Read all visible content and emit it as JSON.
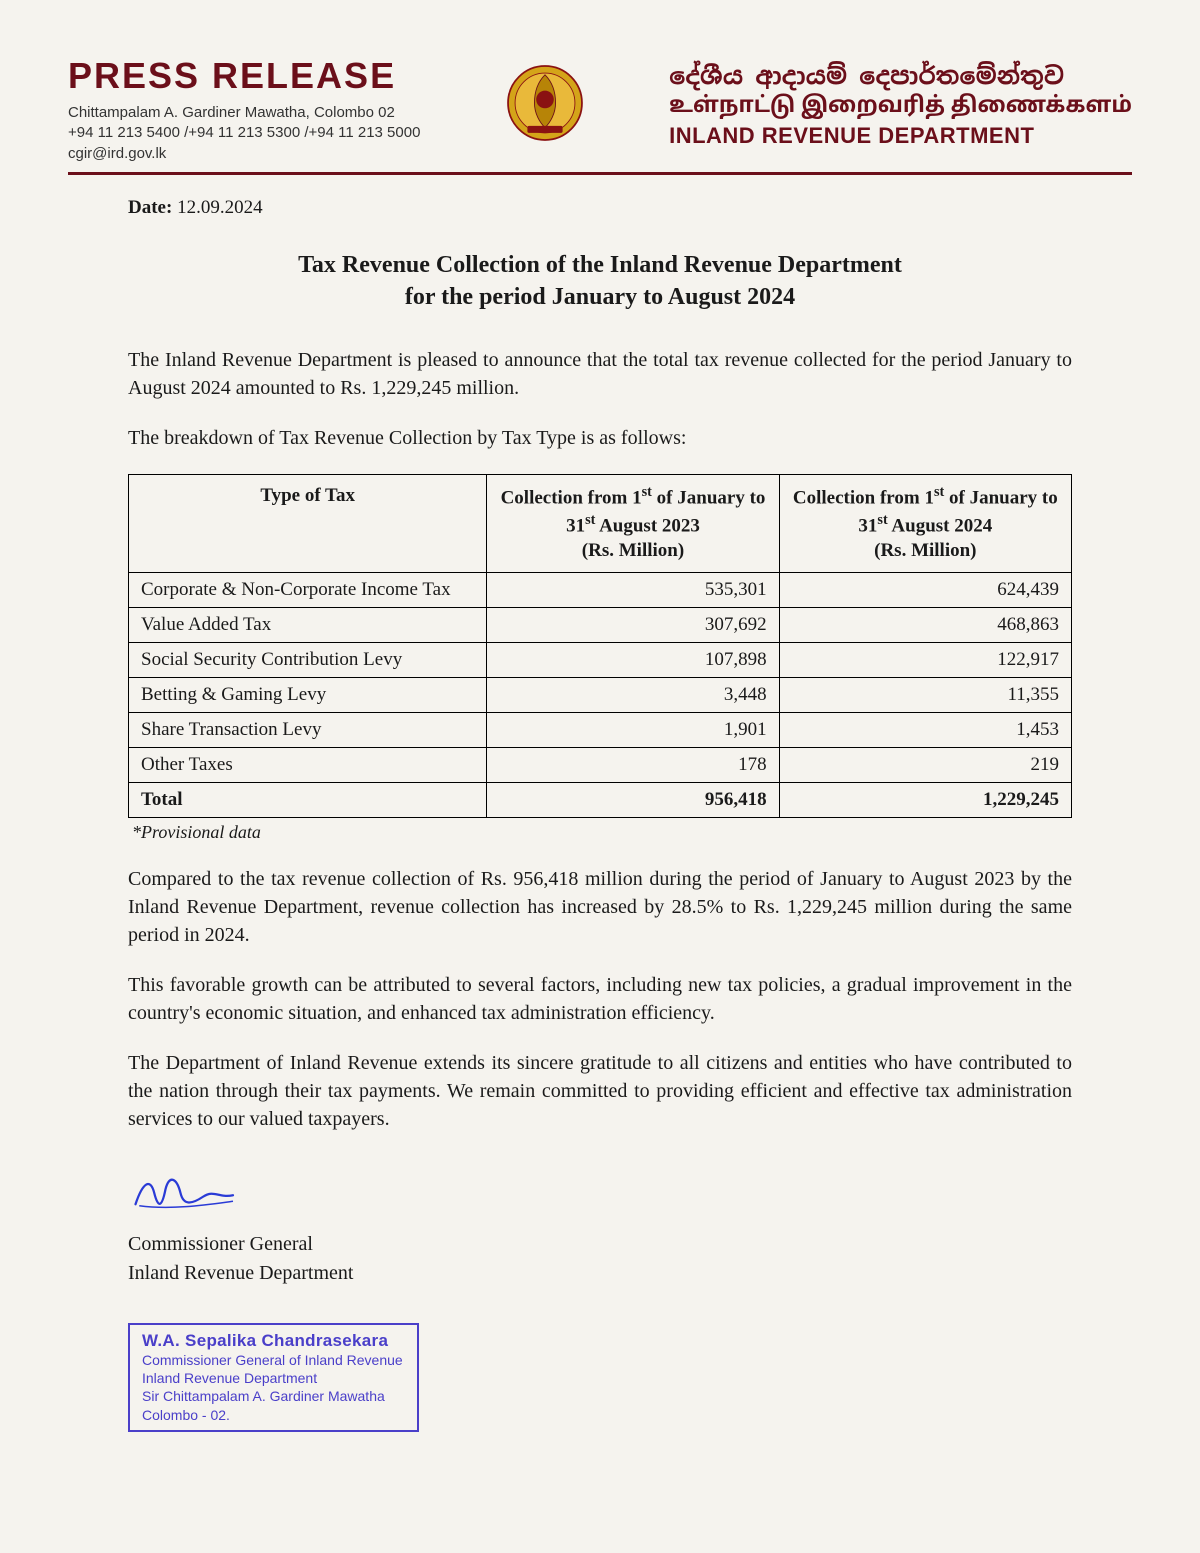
{
  "header": {
    "press_release": "PRESS RELEASE",
    "address_line1": "Chittampalam A. Gardiner Mawatha, Colombo 02",
    "address_line2": "+94 11 213 5400 /+94 11 213 5300 /+94 11 213 5000",
    "address_line3": "cgir@ird.gov.lk",
    "dept_sinhala": "දේශීය ආදායම් දෙපාර්තමේන්තුව",
    "dept_tamil": "உள்நாட்டு இறைவரித் திணைக்களம்",
    "dept_english": "INLAND REVENUE DEPARTMENT",
    "rule_color": "#6b0f1a"
  },
  "date": {
    "label": "Date:",
    "value": " 12.09.2024"
  },
  "title_line1": "Tax Revenue Collection of the Inland Revenue Department",
  "title_line2": "for the period January to August 2024",
  "para1": "The Inland Revenue Department is pleased to announce that the total tax revenue collected for the period January to August 2024 amounted to Rs. 1,229,245 million.",
  "para2": "The breakdown of Tax Revenue Collection by Tax Type is as follows:",
  "table": {
    "columns": {
      "type_header": "Type of Tax",
      "col2023_prefix": "Collection from 1",
      "col2023_sup": "st",
      "col2023_mid1": " of January to 31",
      "col2023_sup2": "st",
      "col2023_mid2": " August 2023",
      "col2023_unit": "(Rs. Million)",
      "col2024_prefix": "Collection from 1",
      "col2024_sup": "st",
      "col2024_mid1": " of January to 31",
      "col2024_sup2": "st",
      "col2024_mid2": " August 2024",
      "col2024_unit": "(Rs. Million)"
    },
    "rows": [
      {
        "type": "Corporate & Non-Corporate Income Tax",
        "y2023": "535,301",
        "y2024": "624,439"
      },
      {
        "type": "Value Added Tax",
        "y2023": "307,692",
        "y2024": "468,863"
      },
      {
        "type": "Social Security Contribution Levy",
        "y2023": "107,898",
        "y2024": "122,917"
      },
      {
        "type": "Betting & Gaming Levy",
        "y2023": "3,448",
        "y2024": "11,355"
      },
      {
        "type": "Share Transaction Levy",
        "y2023": "1,901",
        "y2024": "1,453"
      },
      {
        "type": "Other Taxes",
        "y2023": "178",
        "y2024": "219"
      }
    ],
    "total": {
      "type": "Total",
      "y2023": "956,418",
      "y2024": "1,229,245"
    }
  },
  "footnote": "*Provisional data",
  "para3": "Compared to the tax revenue collection of Rs. 956,418 million during the period of January to August 2023 by the Inland Revenue Department, revenue collection has increased by 28.5% to Rs. 1,229,245 million during the same period in 2024.",
  "para4": "This favorable growth can be attributed to several factors, including new tax policies, a gradual improvement in the country's economic situation, and enhanced tax administration efficiency.",
  "para5": "The Department of Inland Revenue extends its sincere gratitude to all citizens and entities who have contributed to the nation through their tax payments. We remain committed to providing efficient and effective tax administration services to our valued taxpayers.",
  "signature": {
    "role": "Commissioner General",
    "org": "Inland Revenue Department",
    "sig_color": "#2a3bd6"
  },
  "stamp": {
    "name": "W.A. Sepalika Chandrasekara",
    "line1": "Commissioner General of Inland Revenue",
    "line2": "Inland Revenue Department",
    "line3": "Sir Chittampalam A. Gardiner Mawatha",
    "line4": "Colombo - 02.",
    "border_color": "#4a3fc9",
    "text_color": "#4a3fc9"
  },
  "colors": {
    "brand": "#6b0f1a",
    "background": "#f5f3ee",
    "text": "#1a1a1a"
  },
  "typography": {
    "title_fontsize": 24,
    "body_fontsize": 20,
    "table_fontsize": 19,
    "press_fontsize": 36
  }
}
